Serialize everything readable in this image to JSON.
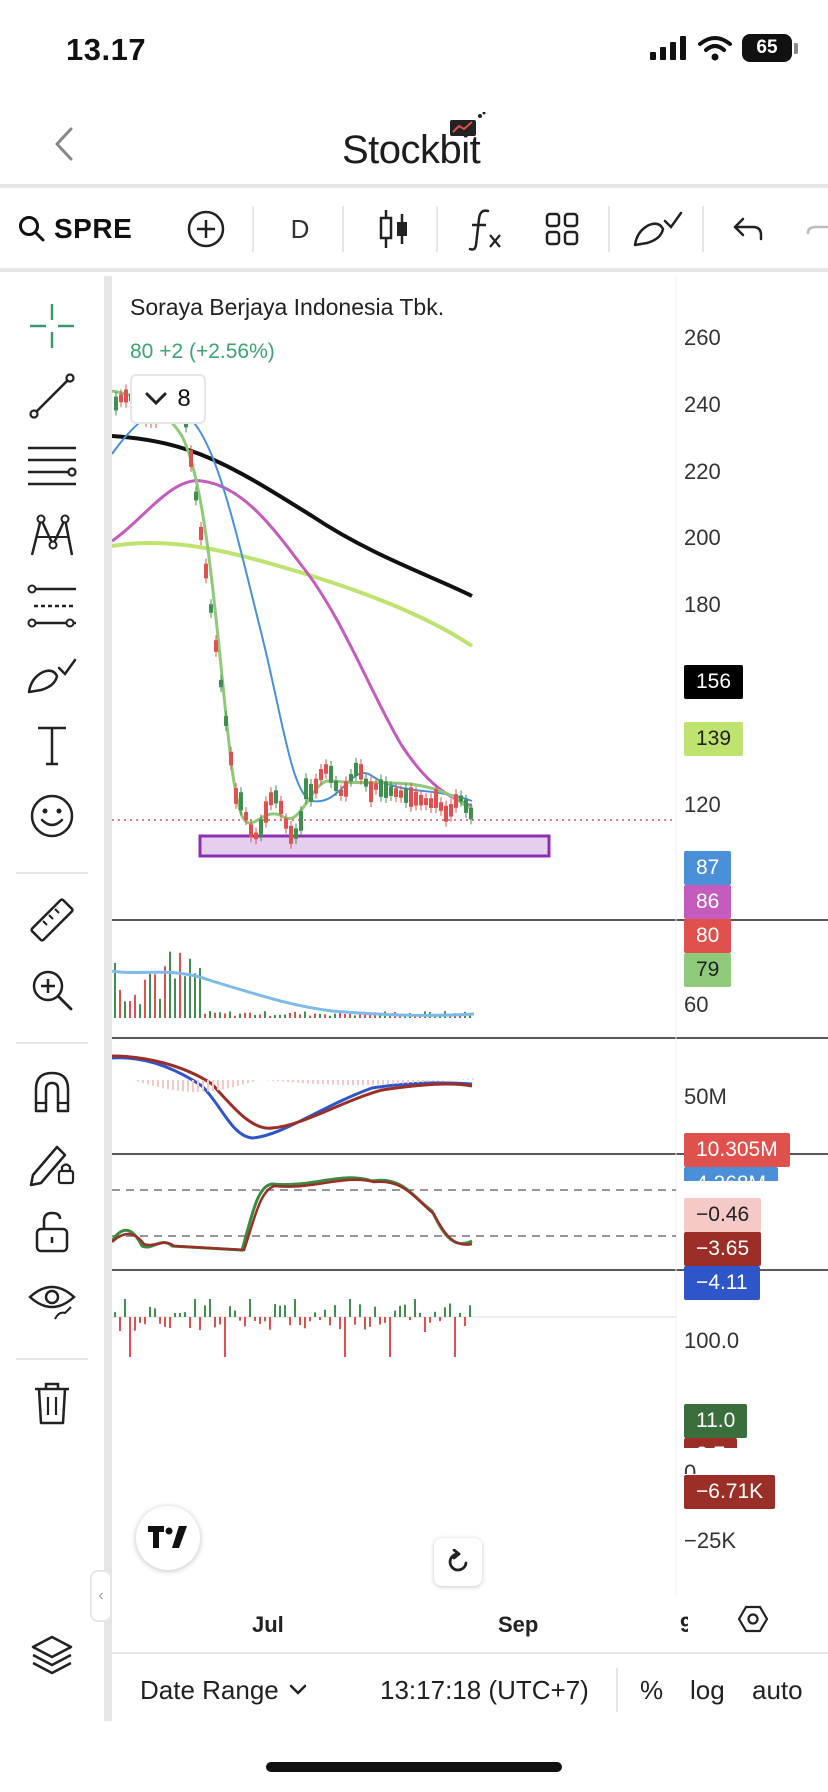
{
  "status": {
    "time": "13.17",
    "battery": "65"
  },
  "header": {
    "logo_text": "Stockbit"
  },
  "toolbar": {
    "symbol": "SPRE",
    "interval": "D"
  },
  "chart": {
    "title": "Soraya Berjaya Indonesia Tbk.",
    "quote": "80  +2 (+2.56%)",
    "indicator_count": "8",
    "price_axis": [
      "260",
      "240",
      "220",
      "200",
      "180",
      "120",
      "60"
    ],
    "badges": {
      "ma_black": "156",
      "ma_green": "139",
      "ma_blue": "87",
      "ma_magenta": "86",
      "last_price": "80",
      "ma_lightgreen": "79",
      "volume": "10.305M",
      "volume_ma": "4.268M",
      "macd_hist": "−0.46",
      "macd_signal": "−3.65",
      "macd_line": "−4.11",
      "stoch_k": "11.0",
      "stoch_d": "3.7",
      "osc_value": "−6.71K"
    },
    "volume_axis": "50M",
    "stoch_axis": "100.0",
    "osc_axis_zero": "0",
    "osc_axis_low": "−25K",
    "x_labels": [
      "Jul",
      "Sep",
      "9"
    ],
    "colors": {
      "up": "#3f8f4f",
      "down": "#e0514e",
      "ma_black": "#111111",
      "ma_green": "#bfe36f",
      "ma_blue": "#4a90d9",
      "ma_magenta": "#c45bbd",
      "ma_lightgreen": "#8fc97a",
      "support_zone": "#8e2fb3"
    }
  },
  "bottom_bar": {
    "date_range": "Date Range",
    "clock": "13:17:18 (UTC+7)",
    "percent": "%",
    "log": "log",
    "auto": "auto"
  }
}
